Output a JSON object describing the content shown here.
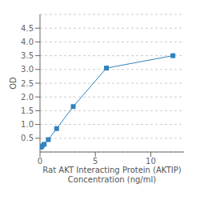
{
  "chart_data": {
    "type": "line",
    "xlabel": "Rat AKT Interacting Protein (AKTIP)\nConcentration (ng/ml)",
    "ylabel": "OD",
    "x": [
      0.047,
      0.094,
      0.188,
      0.375,
      0.75,
      1.5,
      3.0,
      6.0,
      12.0
    ],
    "values": [
      0.175,
      0.19,
      0.22,
      0.28,
      0.45,
      0.85,
      1.65,
      3.05,
      3.5
    ],
    "marker": "square",
    "xlim": [
      0,
      13
    ],
    "xticks": [
      0,
      5,
      10
    ],
    "ylim": [
      0,
      5.0
    ],
    "yticks": [
      0.5,
      {
        "value": 1.0,
        "label": "1.0"
      },
      1.5,
      {
        "value": 2.0,
        "label": "2.0"
      },
      2.5,
      {
        "value": 3.0,
        "label": "3.0"
      },
      3.5,
      {
        "value": 4.0,
        "label": "4.0"
      },
      4.5
    ],
    "grid": "y"
  }
}
